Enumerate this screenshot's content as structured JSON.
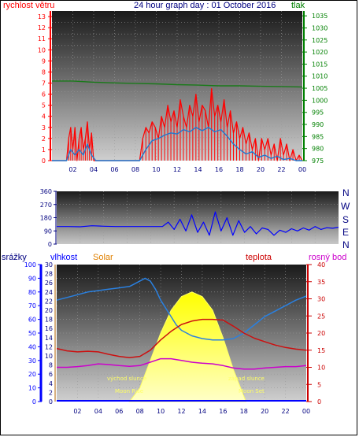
{
  "header": {
    "title": "24 hour graph day : 01 October 2016",
    "wind_label": "rychlost větru",
    "pressure_label": "tlak"
  },
  "panel3": {
    "rain_label": "srážky",
    "humidity_label": "vlhkost",
    "solar_label": "Solar",
    "temp_label": "teplota",
    "dew_label": "rosný bod",
    "sunrise_label": "východ slunce",
    "sunset_label": "západ slunce",
    "moonrise_label": "Moon Rise",
    "moonset_label": "Moon Set"
  },
  "compass": [
    "N",
    "W",
    "S",
    "E",
    "N"
  ],
  "colors": {
    "wind_gust": "#ff0000",
    "wind_avg": "#1e78d0",
    "pressure": "#1a7a1a",
    "direction": "#0000ff",
    "humidity": "#2a80e0",
    "temperature": "#cc1010",
    "dewpoint": "#cc00cc",
    "solar": "#ffff00",
    "rain": "#0000ff",
    "axis_wind": "#ff0000",
    "axis_pressure": "#008000",
    "axis_humidity": "#0000ff",
    "axis_solar": "#b06000",
    "axis_temp": "#cc0000",
    "axis_dir": "#000080"
  },
  "chart_data": [
    {
      "type": "line",
      "x_ticks": [
        "02",
        "04",
        "06",
        "08",
        "10",
        "12",
        "14",
        "16",
        "18",
        "20",
        "22",
        "00"
      ],
      "y_ticks_left": [
        "13",
        "12",
        "11",
        "10",
        "9",
        "8",
        "7",
        "6",
        "5",
        "4",
        "3",
        "2",
        "1",
        "0"
      ],
      "y_ticks_right": [
        "1035",
        "1030",
        "1025",
        "1020",
        "1015",
        "1010",
        "1005",
        "1000",
        "995",
        "990",
        "985",
        "980",
        "975"
      ],
      "ylim_left": [
        0,
        13.5
      ],
      "ylim_right": [
        975,
        1037
      ],
      "xlim": [
        0,
        24
      ],
      "series": [
        {
          "name": "rychlost větru",
          "key": "gust",
          "x": [
            0,
            1.4,
            1.6,
            1.8,
            2.0,
            2.2,
            2.4,
            2.6,
            2.8,
            3.0,
            3.2,
            3.4,
            3.6,
            3.8,
            4.0,
            4.2,
            8.4,
            8.7,
            9.0,
            9.3,
            9.6,
            9.9,
            10.2,
            10.5,
            10.8,
            11.1,
            11.4,
            11.7,
            12.0,
            12.3,
            12.6,
            12.9,
            13.2,
            13.5,
            13.8,
            14.1,
            14.4,
            14.7,
            15.0,
            15.3,
            15.6,
            15.9,
            16.2,
            16.5,
            16.8,
            17.1,
            17.4,
            17.7,
            18.0,
            18.3,
            18.6,
            18.9,
            19.2,
            19.5,
            19.8,
            20.1,
            20.4,
            20.7,
            21.0,
            21.3,
            21.6,
            21.9,
            22.2,
            22.5,
            22.8,
            23.1,
            23.4,
            23.7,
            24.0
          ],
          "y": [
            0,
            0,
            2,
            3,
            1,
            3,
            0,
            2,
            3,
            1,
            2,
            3.5,
            1,
            2.5,
            0,
            0,
            0,
            2,
            3,
            2.5,
            3.5,
            3,
            2,
            4,
            3,
            5,
            3.5,
            4.5,
            3,
            5.5,
            4,
            3,
            5,
            4,
            6,
            3.5,
            5,
            4.5,
            3,
            6.5,
            4,
            5,
            3.5,
            5.5,
            3,
            4.5,
            2.5,
            3.5,
            2,
            3,
            1.5,
            2.5,
            1,
            2,
            0,
            2,
            1,
            2,
            0.5,
            1.5,
            0,
            2,
            0.5,
            1.5,
            0,
            1,
            0,
            0.5,
            0
          ]
        },
        {
          "name": "",
          "key": "avg",
          "x": [
            0,
            1.4,
            1.8,
            2.2,
            2.6,
            3.0,
            3.4,
            3.8,
            4.2,
            8.4,
            9.0,
            9.6,
            10.2,
            10.8,
            11.4,
            12.0,
            12.6,
            13.2,
            13.8,
            14.4,
            15.0,
            15.6,
            16.2,
            16.8,
            17.4,
            18.0,
            18.6,
            19.2,
            19.8,
            20.4,
            21.0,
            21.6,
            22.2,
            22.8,
            23.4,
            24.0
          ],
          "y": [
            0,
            0,
            1,
            0.5,
            1,
            0.5,
            1.5,
            0.5,
            0,
            0,
            1,
            1.8,
            2,
            2.3,
            2.5,
            2.4,
            2.8,
            2.6,
            3,
            2.7,
            3,
            2.6,
            2.8,
            2.2,
            1.5,
            1,
            0.6,
            0.8,
            0.3,
            0.5,
            0.2,
            0.4,
            0.1,
            0.2,
            0,
            0
          ]
        },
        {
          "name": "tlak",
          "key": "pressure",
          "x": [
            0,
            2,
            4,
            6,
            8,
            10,
            12,
            14,
            16,
            18,
            20,
            22,
            24
          ],
          "y": [
            1008,
            1008,
            1007.5,
            1007.2,
            1007,
            1006.8,
            1006.5,
            1006.3,
            1006,
            1006,
            1005.8,
            1005.7,
            1005.5
          ]
        }
      ]
    },
    {
      "type": "line",
      "x_ticks": [],
      "y_ticks": [
        "360",
        "270",
        "180",
        "90",
        "0"
      ],
      "ylim": [
        0,
        360
      ],
      "xlim": [
        0,
        24
      ],
      "series": [
        {
          "name": "",
          "key": "direction",
          "x": [
            0,
            1,
            2,
            3,
            4,
            5,
            6,
            7,
            8,
            9,
            9.5,
            10,
            10.5,
            11,
            11.5,
            12,
            12.5,
            13,
            13.5,
            14,
            14.5,
            15,
            15.5,
            16,
            16.5,
            17,
            17.5,
            18,
            18.5,
            19,
            19.5,
            20,
            20.5,
            21,
            21.5,
            22,
            22.5,
            23,
            23.5,
            24
          ],
          "y": [
            120,
            120,
            118,
            125,
            122,
            120,
            120,
            120,
            120,
            120,
            150,
            100,
            170,
            90,
            200,
            80,
            150,
            60,
            220,
            90,
            180,
            60,
            160,
            80,
            120,
            70,
            110,
            100,
            60,
            95,
            80,
            105,
            90,
            110,
            95,
            120,
            100,
            112,
            108,
            115
          ]
        }
      ]
    },
    {
      "type": "line",
      "x_ticks": [
        "02",
        "04",
        "06",
        "08",
        "10",
        "12",
        "14",
        "16",
        "18",
        "20",
        "22",
        "00"
      ],
      "y_ticks_rain": [
        "30",
        "28",
        "26",
        "24",
        "22",
        "20",
        "18",
        "16",
        "14",
        "12",
        "10",
        "8",
        "6",
        "4",
        "2",
        "0"
      ],
      "y_ticks_humidity": [
        "100",
        "90",
        "80",
        "70",
        "60",
        "50",
        "40",
        "30",
        "20",
        "10",
        "0"
      ],
      "y_ticks_temp": [
        "40",
        "35",
        "30",
        "25",
        "20",
        "15",
        "10",
        "5",
        "0"
      ],
      "ylim_humidity": [
        0,
        100
      ],
      "ylim_temp": [
        0,
        40
      ],
      "ylim_solar": [
        0,
        30
      ],
      "xlim": [
        0,
        24
      ],
      "series": [
        {
          "name": "vlhkost",
          "key": "humidity",
          "x": [
            0,
            1,
            2,
            3,
            4,
            5,
            6,
            7,
            7.5,
            8,
            8.5,
            9,
            9.5,
            10,
            10.5,
            11,
            11.5,
            12,
            13,
            14,
            15,
            16,
            17,
            18,
            19,
            20,
            21,
            22,
            23,
            24
          ],
          "y": [
            74,
            76,
            78,
            80,
            81,
            82,
            83,
            84,
            86,
            88,
            90,
            88,
            82,
            74,
            68,
            62,
            56,
            52,
            48,
            46,
            45,
            45,
            46,
            50,
            56,
            62,
            66,
            70,
            74,
            77
          ]
        },
        {
          "name": "teplota",
          "key": "temp",
          "x": [
            0,
            1,
            2,
            3,
            4,
            5,
            6,
            7,
            8,
            9,
            10,
            11,
            12,
            13,
            14,
            15,
            16,
            17,
            18,
            19,
            20,
            21,
            22,
            23,
            24
          ],
          "y": [
            15.5,
            14.8,
            14.5,
            14.7,
            14.5,
            13.8,
            13.2,
            12.8,
            13.2,
            15,
            18,
            20.5,
            22.5,
            23.5,
            24,
            24,
            23.8,
            22,
            20,
            18.5,
            17.5,
            16.5,
            15.8,
            15.3,
            15
          ]
        },
        {
          "name": "rosný bod",
          "key": "dew",
          "x": [
            0,
            1,
            2,
            3,
            4,
            5,
            6,
            7,
            8,
            9,
            10,
            11,
            12,
            13,
            14,
            15,
            16,
            17,
            18,
            19,
            20,
            21,
            22,
            23,
            24
          ],
          "y": [
            10,
            10,
            10.2,
            10.5,
            11,
            10.8,
            10.5,
            10.3,
            10.5,
            11.5,
            12.5,
            12.5,
            12,
            11.5,
            11.2,
            11,
            10.5,
            9.8,
            9.5,
            9.5,
            9.8,
            10,
            10.2,
            10.2,
            10.5
          ]
        },
        {
          "name": "Solar",
          "key": "solar",
          "x": [
            7,
            8,
            9,
            10,
            11,
            12,
            13,
            14,
            15,
            16,
            17,
            18.2
          ],
          "y": [
            0,
            3,
            9,
            15,
            20,
            23,
            24,
            23,
            20,
            14,
            7,
            0
          ]
        }
      ]
    }
  ]
}
